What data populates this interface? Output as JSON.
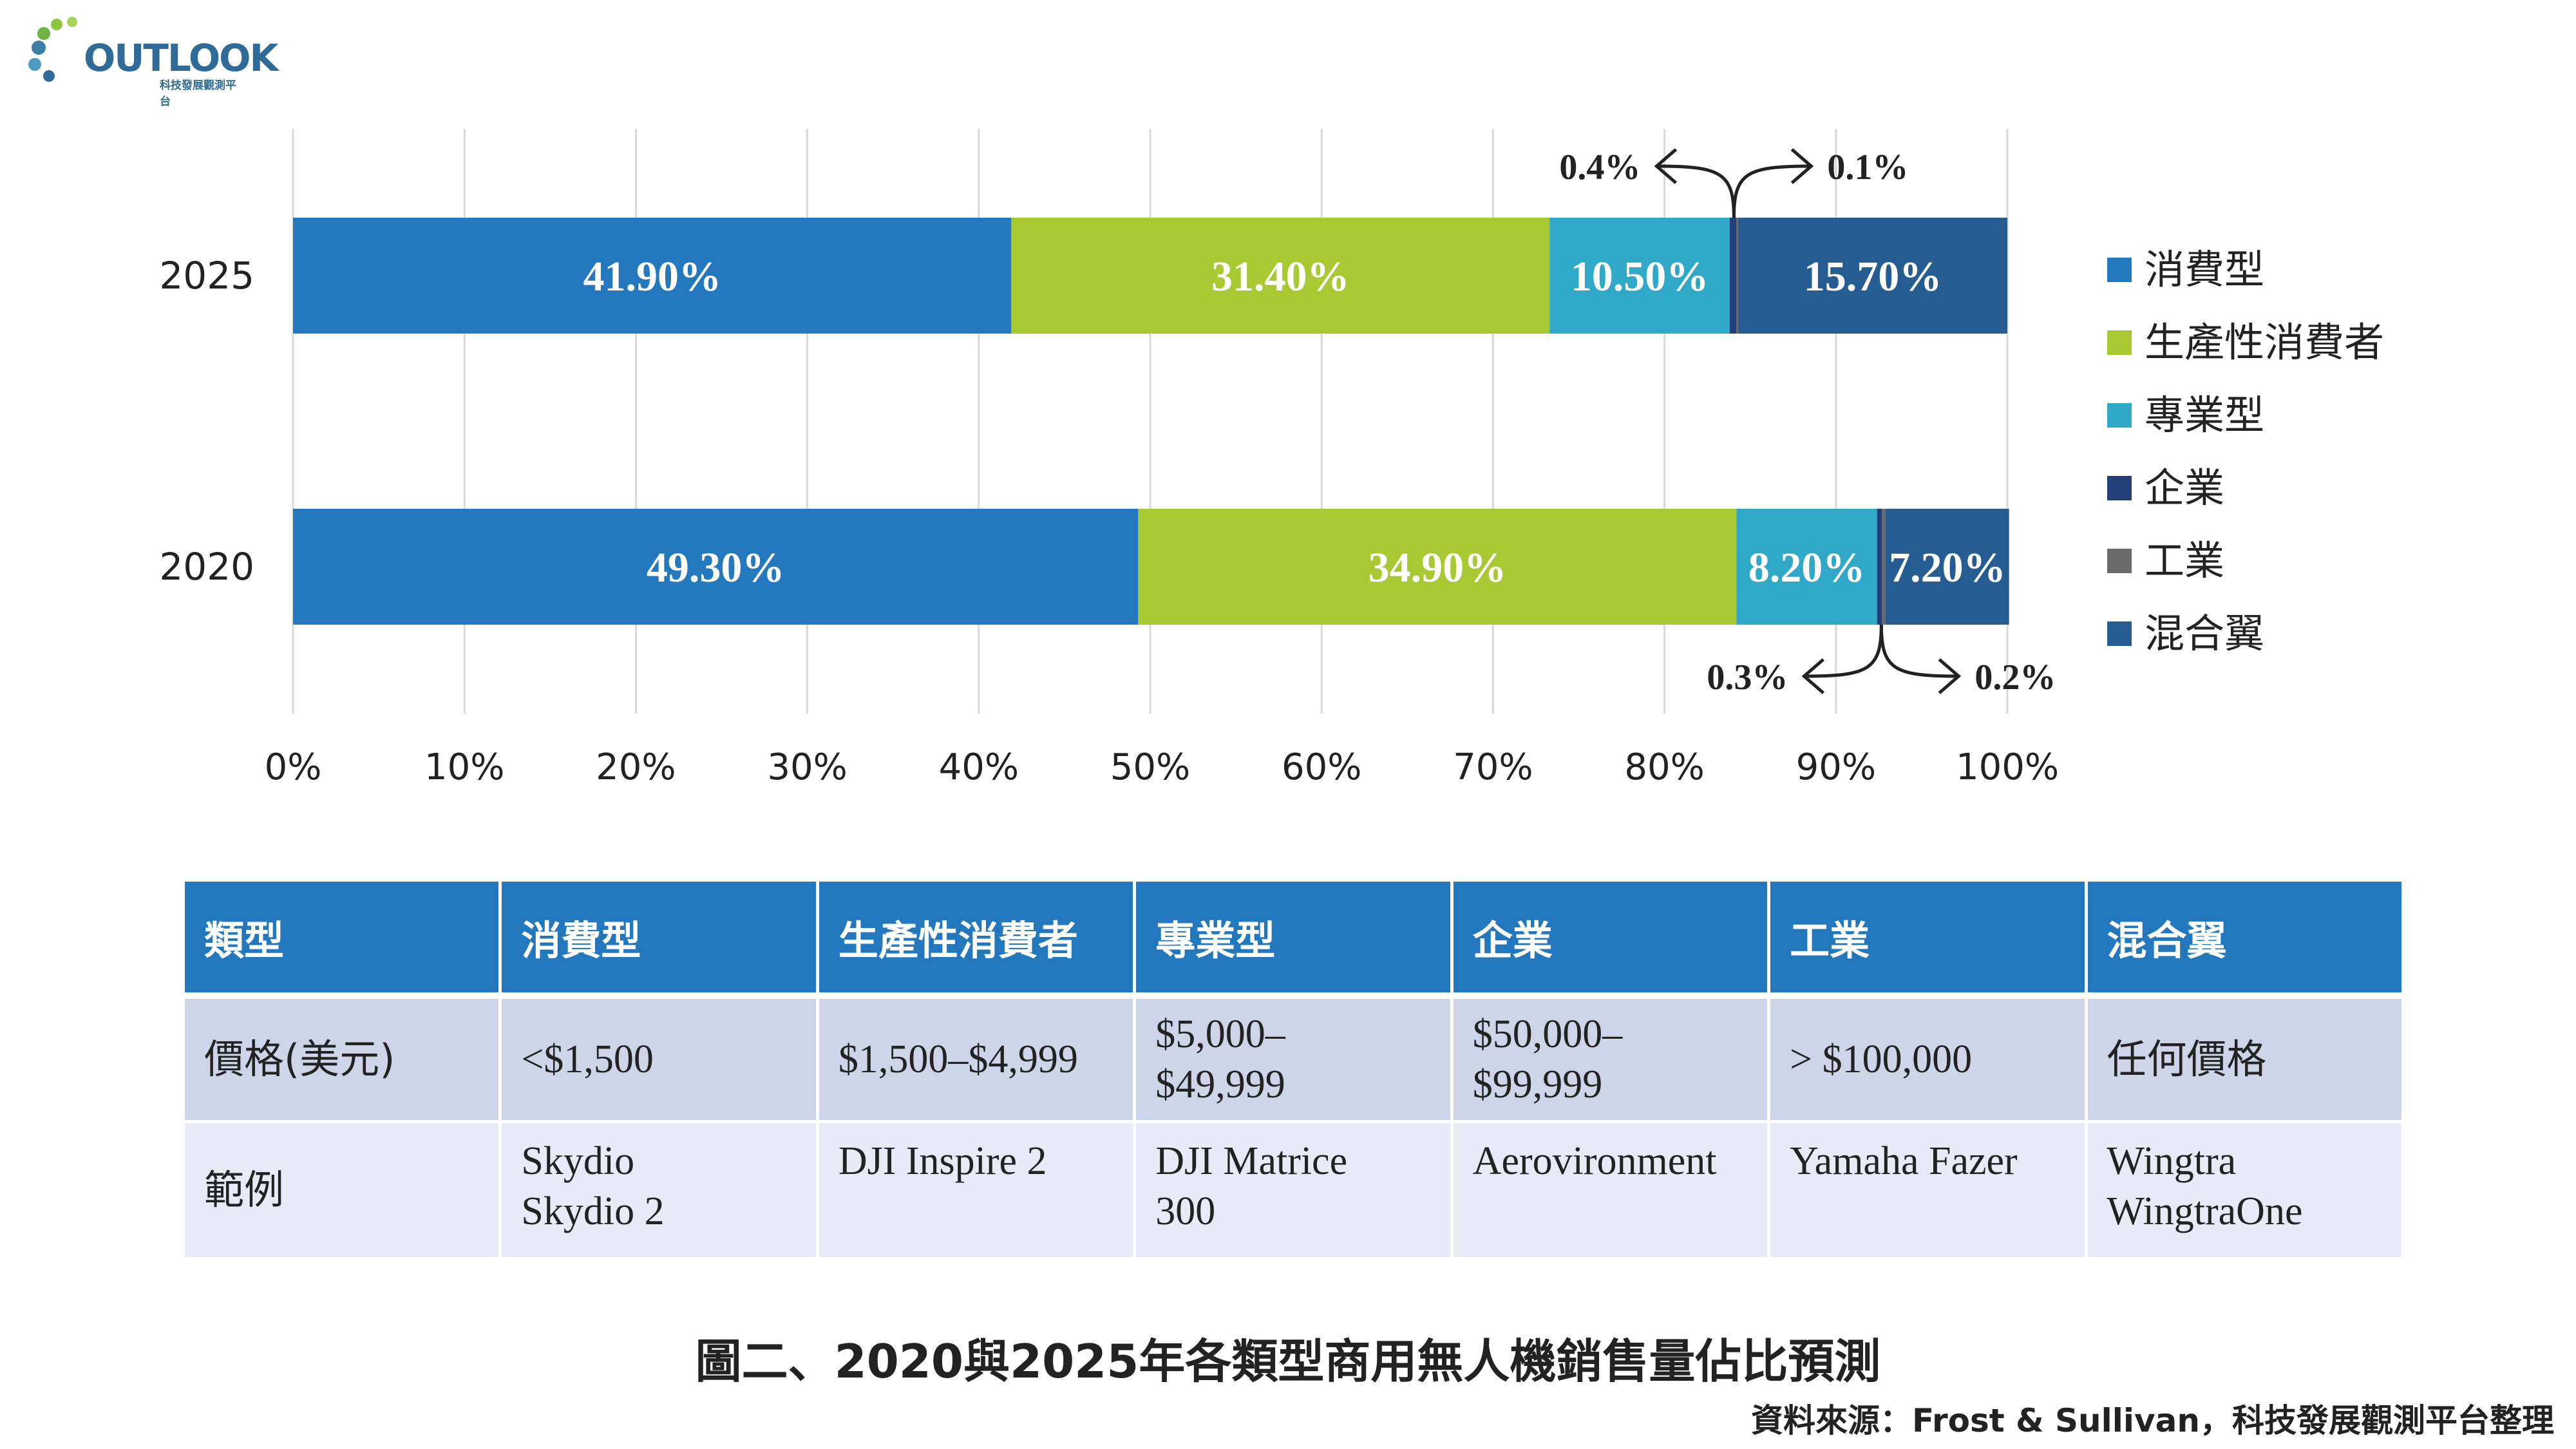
{
  "logo": {
    "text": "OUTLOOK",
    "subtitle": "科技發展觀測平台"
  },
  "chart_data": {
    "type": "bar",
    "orientation": "horizontal",
    "stacked": true,
    "categories": [
      "2025",
      "2020"
    ],
    "series": [
      {
        "name": "消費型",
        "color": "#2479be",
        "values": [
          41.9,
          49.3
        ],
        "labels": [
          "41.90%",
          "49.30%"
        ]
      },
      {
        "name": "生產性消費者",
        "color": "#a8c932",
        "values": [
          31.4,
          34.9
        ],
        "labels": [
          "31.40%",
          "34.90%"
        ]
      },
      {
        "name": "專業型",
        "color": "#30a9c8",
        "values": [
          10.5,
          8.2
        ],
        "labels": [
          "10.50%",
          "8.20%"
        ]
      },
      {
        "name": "企業",
        "color": "#233f77",
        "values": [
          0.4,
          0.3
        ],
        "labels": [
          "0.4%",
          "0.3%"
        ]
      },
      {
        "name": "工業",
        "color": "#6b6b6b",
        "values": [
          0.1,
          0.2
        ],
        "labels": [
          "0.1%",
          "0.2%"
        ]
      },
      {
        "name": "混合翼",
        "color": "#255d93",
        "values": [
          15.7,
          7.2
        ],
        "labels": [
          "15.70%",
          "7.20%"
        ]
      }
    ],
    "xlim": [
      0,
      100
    ],
    "x_ticks": [
      "0%",
      "10%",
      "20%",
      "30%",
      "40%",
      "50%",
      "60%",
      "70%",
      "80%",
      "90%",
      "100%"
    ],
    "grid": true,
    "legend_position": "right"
  },
  "table": {
    "headers": [
      "類型",
      "消費型",
      "生產性消費者",
      "專業型",
      "企業",
      "工業",
      "混合翼"
    ],
    "price_row": [
      "價格(美元)",
      "<$1,500",
      "$1,500–$4,999",
      "$5,000–\n$49,999",
      "$50,000–\n$99,999",
      "> $100,000",
      "任何價格"
    ],
    "example_row": [
      "範例",
      "Skydio\nSkydio 2",
      "DJI Inspire 2",
      "DJI Matrice\n300",
      "Aerovironment",
      "Yamaha Fazer",
      "Wingtra\nWingtraOne"
    ]
  },
  "caption": "圖二、2020與2025年各類型商用無人機銷售量佔比預測",
  "source": "資料來源：Frost & Sullivan，科技發展觀測平台整理"
}
